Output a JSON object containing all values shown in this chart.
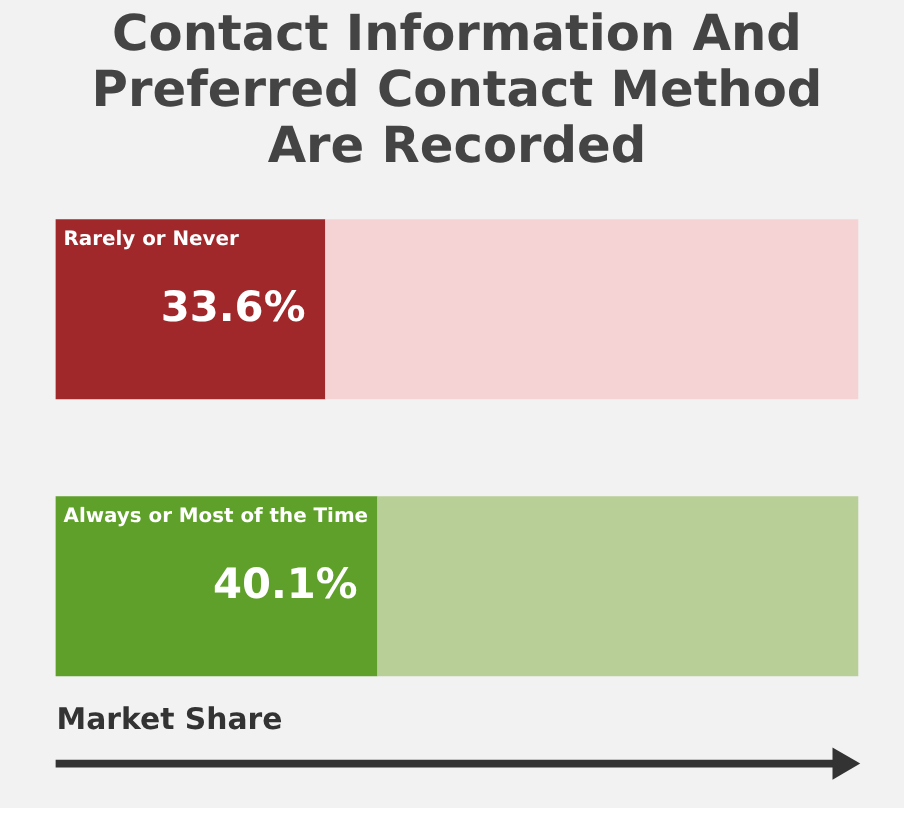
{
  "chart_data": {
    "type": "bar",
    "title": "Contact Information And Preferred Contact Method Are Recorded",
    "xlabel": "Market Share",
    "categories": [
      "Rarely or Never",
      "Always or Most of the Time"
    ],
    "orientation": "horizontal",
    "stacked": true,
    "xlim": [
      0,
      100
    ],
    "tick_labels": false,
    "grid": false,
    "legend": false,
    "series": [
      {
        "values": [
          33.6,
          40.1
        ],
        "colors": [
          "#a0282a",
          "#5fa02a"
        ],
        "value_labels": [
          "33.6%",
          "40.1%"
        ]
      },
      {
        "values": [
          66.4,
          59.9
        ],
        "colors": [
          "#f5d3d5",
          "#b8cf98"
        ]
      }
    ]
  }
}
